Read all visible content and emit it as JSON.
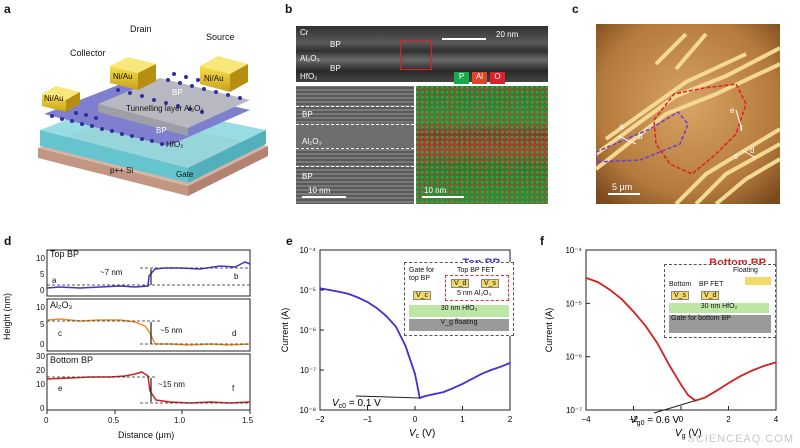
{
  "panels": {
    "a": {
      "label": "a",
      "collector": "Collector",
      "drain": "Drain",
      "source": "Source",
      "pad_nial": "Ni/Au",
      "bp_top": "BP",
      "tunnel": "Tunnelling layer Al₂O₃",
      "bp_bottom": "BP",
      "hfo2": "HfO₂",
      "psi": "p++ Si",
      "gate": "Gate"
    },
    "b": {
      "label": "b",
      "cr": "Cr",
      "bp1": "BP",
      "al2o3": "Al₂O₃",
      "bp2": "BP",
      "hfo2": "HfO₂",
      "scale1": "20 nm",
      "legend": [
        "P",
        "Al",
        "O"
      ],
      "legend_colors": [
        "#19a84a",
        "#e0442a",
        "#d9222b"
      ],
      "tem_bp1": "BP",
      "tem_al2o3": "Al₂O₃",
      "tem_bp2": "BP",
      "scale2": "10 nm",
      "scale3": "10 nm"
    },
    "c": {
      "label": "c",
      "scale": "5 μm",
      "markers": [
        "a",
        "b",
        "e",
        "f",
        "c",
        "d"
      ]
    },
    "d": {
      "label": "d",
      "ylabel": "Height (nm)",
      "xlabel": "Distance (μm)",
      "xticks": [
        "0",
        "0.5",
        "1.0",
        "1.5"
      ],
      "sub1": {
        "title": "Top BP",
        "yticks": [
          "10",
          "5",
          "0"
        ],
        "ann": "~7 nm",
        "left": "a",
        "right": "b",
        "color": "#4433cc"
      },
      "sub2": {
        "title": "Al₂O₃",
        "yticks": [
          "10",
          "5",
          "0"
        ],
        "ann": "~5 nm",
        "left": "c",
        "right": "d",
        "color": "#e8902a"
      },
      "sub3": {
        "title": "Bottom BP",
        "yticks": [
          "30",
          "20",
          "10",
          "0"
        ],
        "ann": "~15 nm",
        "left": "e",
        "right": "f",
        "color": "#cc2222"
      }
    },
    "e": {
      "label": "e",
      "title": "Top BP"
    },
    "f": {
      "label": "f",
      "title": "Bottom BP"
    }
  },
  "chart_data": [
    {
      "type": "line",
      "title": "Top BP",
      "xlabel": "V_c (V)",
      "ylabel": "Current (A)",
      "xlim": [
        -2,
        2
      ],
      "ylim": [
        1e-08,
        0.0001
      ],
      "yscale": "log",
      "xticks": [
        "−2",
        "−1",
        "0",
        "1",
        "2"
      ],
      "yticks": [
        "10⁻⁴",
        "10⁻⁵",
        "10⁻⁶",
        "10⁻⁷",
        "10⁻⁸"
      ],
      "color": "#4a2bd6",
      "annotation": "V_c0 = 0.1 V",
      "annotation_main": "V",
      "annotation_sub": "c0",
      "annotation_rest": " = 0.1 V",
      "inset": {
        "gate_label": "Gate for top BP",
        "fet_label": "Top BP FET",
        "vc": "V_c",
        "vd": "V_d",
        "vs": "V_s",
        "al2o3": "5 nm Al₂O₃",
        "hfo2": "30 nm HfO₂",
        "vg": "V_g floating"
      },
      "x": [
        -2.0,
        -1.8,
        -1.6,
        -1.4,
        -1.2,
        -1.0,
        -0.8,
        -0.6,
        -0.4,
        -0.2,
        0.0,
        0.1,
        0.2,
        0.4,
        0.6,
        0.8,
        1.0,
        1.2,
        1.4,
        1.6,
        1.8,
        2.0
      ],
      "y": [
        1.1e-05,
        1e-05,
        9e-06,
        8e-06,
        6.5e-06,
        5e-06,
        3.5e-06,
        2.2e-06,
        1.2e-06,
        4e-07,
        8e-08,
        2e-08,
        2.2e-08,
        2.5e-08,
        2.8e-08,
        3.5e-08,
        4.5e-08,
        6e-08,
        8e-08,
        1e-07,
        1.2e-07,
        1.5e-07
      ]
    },
    {
      "type": "line",
      "title": "Bottom BP",
      "xlabel": "V_g (V)",
      "ylabel": "Current (A)",
      "xlim": [
        -4,
        4
      ],
      "ylim": [
        1e-07,
        0.0001
      ],
      "yscale": "log",
      "xticks": [
        "−4",
        "−2",
        "0",
        "2",
        "4"
      ],
      "yticks": [
        "10⁻⁴",
        "10⁻⁵",
        "10⁻⁶",
        "10⁻⁷"
      ],
      "color": "#d42020",
      "annotation": "V_g0 = 0.6 V",
      "annotation_main": "V",
      "annotation_sub": "g0",
      "annotation_rest": " = 0.6 V",
      "inset": {
        "floating": "Floating",
        "bottom": "Bottom",
        "bpfet": "BP FET",
        "vs": "V_s",
        "vd": "V_d",
        "hfo2": "30 nm HfO₂",
        "gate": "Gate for bottom BP"
      },
      "x": [
        -4.0,
        -3.5,
        -3.0,
        -2.5,
        -2.0,
        -1.5,
        -1.0,
        -0.5,
        0.0,
        0.3,
        0.6,
        1.0,
        1.5,
        2.0,
        2.5,
        3.0,
        3.5,
        4.0
      ],
      "y": [
        3e-05,
        2.5e-05,
        1.8e-05,
        1.2e-05,
        7e-06,
        3.8e-06,
        1.8e-06,
        7e-07,
        3e-07,
        1.9e-07,
        1.5e-07,
        1.7e-07,
        2.3e-07,
        3.2e-07,
        4.3e-07,
        5.5e-07,
        6.7e-07,
        7.8e-07
      ]
    }
  ],
  "watermark": "SCIENCEAQ.COM"
}
